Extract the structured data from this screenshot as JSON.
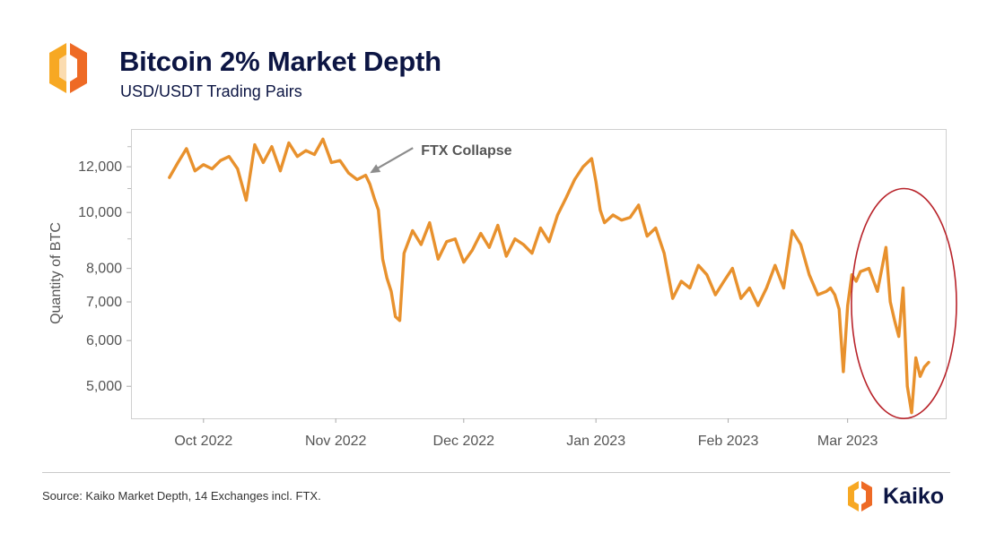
{
  "header": {
    "title": "Bitcoin 2% Market Depth",
    "subtitle": "USD/USDT Trading Pairs"
  },
  "footer": {
    "source": "Source: Kaiko Market Depth, 14 Exchanges incl. FTX.",
    "brand": "Kaiko"
  },
  "colors": {
    "line": "#e8912d",
    "highlight_ellipse": "#b8232a",
    "title": "#0c1543",
    "logo_orange": "#f7a823",
    "logo_red": "#ee6a25"
  },
  "icons": {
    "logo": "kaiko-hexagon-logo-icon",
    "brand_logo": "kaiko-hexagon-logo-icon"
  },
  "chart_data": {
    "type": "line",
    "title": "Bitcoin 2% Market Depth",
    "subtitle": "USD/USDT Trading Pairs",
    "xlabel": "",
    "ylabel": "Quantity of BTC",
    "y_scale": "log",
    "ylim": [
      4400,
      13900
    ],
    "xlim": [
      "2022-09-14",
      "2023-03-24"
    ],
    "yticks": [
      {
        "value": 5000,
        "label": "5,000"
      },
      {
        "value": 6000,
        "label": "6,000"
      },
      {
        "value": 7000,
        "label": "7,000"
      },
      {
        "value": 8000,
        "label": "8,000"
      },
      {
        "value": 10000,
        "label": "10,000"
      },
      {
        "value": 12000,
        "label": "12,000"
      }
    ],
    "yticks_minor": [
      9000,
      11000,
      13000
    ],
    "xticks": [
      {
        "value": "2022-10-01",
        "label": "Oct 2022"
      },
      {
        "value": "2022-11-01",
        "label": "Nov 2022"
      },
      {
        "value": "2022-12-01",
        "label": "Dec 2022"
      },
      {
        "value": "2023-01-01",
        "label": "Jan 2023"
      },
      {
        "value": "2023-02-01",
        "label": "Feb 2023"
      },
      {
        "value": "2023-03-01",
        "label": "Mar 2023"
      }
    ],
    "grid": false,
    "legend": "none",
    "annotations": [
      {
        "text": "FTX Collapse",
        "arrow_to": {
          "x": "2022-11-09",
          "y": 11700
        }
      },
      {
        "shape": "ellipse",
        "x_from": "2023-03-04",
        "x_to": "2023-03-24",
        "y_from": 4350,
        "y_to": 11000
      }
    ],
    "series": [
      {
        "x": [
          "2022-09-23",
          "2022-09-25",
          "2022-09-27",
          "2022-09-29",
          "2022-10-01",
          "2022-10-03",
          "2022-10-05",
          "2022-10-07",
          "2022-10-09",
          "2022-10-11",
          "2022-10-13",
          "2022-10-15",
          "2022-10-17",
          "2022-10-19",
          "2022-10-21",
          "2022-10-23",
          "2022-10-25",
          "2022-10-27",
          "2022-10-29",
          "2022-10-31",
          "2022-11-02",
          "2022-11-04",
          "2022-11-06",
          "2022-11-08",
          "2022-11-09",
          "2022-11-10",
          "2022-11-11",
          "2022-11-12",
          "2022-11-13",
          "2022-11-14",
          "2022-11-15",
          "2022-11-16",
          "2022-11-17",
          "2022-11-19",
          "2022-11-21",
          "2022-11-23",
          "2022-11-25",
          "2022-11-27",
          "2022-11-29",
          "2022-12-01",
          "2022-12-03",
          "2022-12-05",
          "2022-12-07",
          "2022-12-09",
          "2022-12-11",
          "2022-12-13",
          "2022-12-15",
          "2022-12-17",
          "2022-12-19",
          "2022-12-21",
          "2022-12-23",
          "2022-12-25",
          "2022-12-27",
          "2022-12-29",
          "2022-12-31",
          "2023-01-01",
          "2023-01-02",
          "2023-01-03",
          "2023-01-05",
          "2023-01-07",
          "2023-01-09",
          "2023-01-11",
          "2023-01-13",
          "2023-01-15",
          "2023-01-17",
          "2023-01-19",
          "2023-01-21",
          "2023-01-23",
          "2023-01-25",
          "2023-01-27",
          "2023-01-29",
          "2023-01-31",
          "2023-02-02",
          "2023-02-04",
          "2023-02-06",
          "2023-02-08",
          "2023-02-10",
          "2023-02-12",
          "2023-02-14",
          "2023-02-16",
          "2023-02-18",
          "2023-02-20",
          "2023-02-22",
          "2023-02-24",
          "2023-02-25",
          "2023-02-26",
          "2023-02-27",
          "2023-02-28",
          "2023-03-01",
          "2023-03-02",
          "2023-03-03",
          "2023-03-04",
          "2023-03-06",
          "2023-03-08",
          "2023-03-10",
          "2023-03-11",
          "2023-03-12",
          "2023-03-13",
          "2023-03-14",
          "2023-03-15",
          "2023-03-16",
          "2023-03-17",
          "2023-03-18",
          "2023-03-19",
          "2023-03-20"
        ],
        "values": [
          11500,
          12200,
          12900,
          11800,
          12100,
          11900,
          12300,
          12500,
          11900,
          10500,
          13100,
          12200,
          13000,
          11800,
          13200,
          12500,
          12800,
          12600,
          13400,
          12200,
          12300,
          11700,
          11400,
          11600,
          11200,
          10600,
          10100,
          8300,
          7700,
          7300,
          6600,
          6500,
          8500,
          9300,
          8800,
          9600,
          8300,
          8900,
          9000,
          8200,
          8600,
          9200,
          8700,
          9500,
          8400,
          9000,
          8800,
          8500,
          9400,
          8900,
          9900,
          10600,
          11400,
          12000,
          12400,
          11300,
          10100,
          9600,
          9900,
          9700,
          9800,
          10300,
          9100,
          9400,
          8500,
          7100,
          7600,
          7400,
          8100,
          7800,
          7200,
          7600,
          8000,
          7100,
          7400,
          6900,
          7400,
          8100,
          7400,
          9300,
          8800,
          7800,
          7200,
          7300,
          7400,
          7200,
          6800,
          5300,
          6900,
          7800,
          7600,
          7900,
          8000,
          7300,
          8700,
          7000,
          6500,
          6100,
          7400,
          5000,
          4500,
          5600,
          5200,
          5400,
          5500
        ]
      }
    ]
  }
}
